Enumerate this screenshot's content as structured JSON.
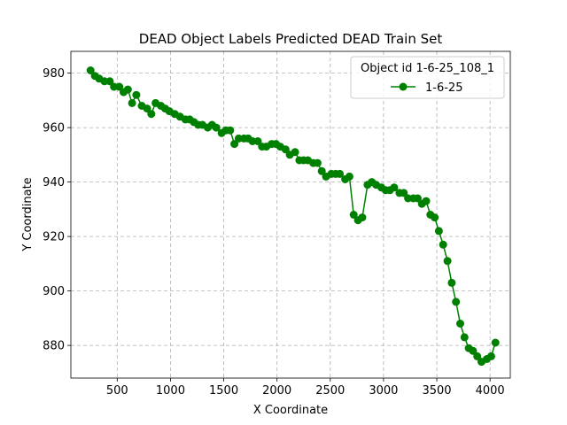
{
  "chart_data": {
    "type": "line",
    "title": "DEAD Object Labels Predicted DEAD Train Set",
    "xlabel": "X Coordinate",
    "ylabel": "Y Coordinate",
    "xlim": [
      65,
      4190
    ],
    "ylim": [
      868,
      988
    ],
    "xticks": [
      500,
      1000,
      1500,
      2000,
      2500,
      3000,
      3500,
      4000
    ],
    "yticks": [
      880,
      900,
      920,
      940,
      960,
      980
    ],
    "grid": true,
    "legend": {
      "title": "Object id 1-6-25_108_1",
      "placement": "top-right"
    },
    "series": [
      {
        "name": "1-6-25",
        "color": "#008000",
        "marker": "circle",
        "x": [
          250,
          290,
          330,
          380,
          430,
          470,
          520,
          560,
          600,
          640,
          680,
          730,
          780,
          820,
          860,
          910,
          950,
          990,
          1040,
          1090,
          1140,
          1180,
          1220,
          1260,
          1300,
          1350,
          1390,
          1430,
          1480,
          1520,
          1560,
          1600,
          1640,
          1690,
          1730,
          1770,
          1820,
          1860,
          1900,
          1950,
          1990,
          2030,
          2080,
          2120,
          2170,
          2210,
          2250,
          2290,
          2340,
          2380,
          2420,
          2460,
          2510,
          2550,
          2590,
          2640,
          2680,
          2720,
          2760,
          2800,
          2850,
          2890,
          2930,
          2980,
          3020,
          3060,
          3100,
          3150,
          3190,
          3230,
          3280,
          3320,
          3360,
          3400,
          3440,
          3480,
          3520,
          3560,
          3600,
          3640,
          3680,
          3720,
          3760,
          3800,
          3840,
          3880,
          3920,
          3970,
          4010,
          4050
        ],
        "y": [
          981,
          979,
          978,
          977,
          977,
          975,
          975,
          973,
          974,
          969,
          972,
          968,
          967,
          965,
          969,
          968,
          967,
          966,
          965,
          964,
          963,
          963,
          962,
          961,
          961,
          960,
          961,
          960,
          958,
          959,
          959,
          954,
          956,
          956,
          956,
          955,
          955,
          953,
          953,
          954,
          954,
          953,
          952,
          950,
          951,
          948,
          948,
          948,
          947,
          947,
          944,
          942,
          943,
          943,
          943,
          941,
          942,
          928,
          926,
          927,
          939,
          940,
          939,
          938,
          937,
          937,
          938,
          936,
          936,
          934,
          934,
          934,
          932,
          933,
          928,
          927,
          922,
          917,
          911,
          903,
          896,
          888,
          883,
          879,
          878,
          876,
          874,
          875,
          876,
          881
        ]
      }
    ]
  }
}
